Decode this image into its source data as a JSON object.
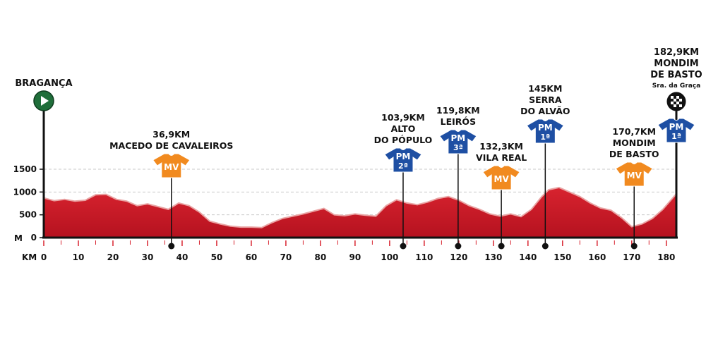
{
  "chart_data": {
    "type": "area",
    "title": "",
    "x_unit_label": "KM",
    "y_unit_label": "M",
    "xlim": [
      0,
      182.9
    ],
    "ylim": [
      0,
      1500
    ],
    "x_ticks": [
      0,
      10,
      20,
      30,
      40,
      50,
      60,
      70,
      80,
      90,
      100,
      110,
      120,
      130,
      140,
      150,
      160,
      170,
      180
    ],
    "y_ticks": [
      0,
      500,
      1000,
      1500
    ],
    "grid": "dashed horizontal",
    "profile": {
      "x": [
        0,
        3,
        6,
        9,
        12,
        15,
        18,
        21,
        24,
        27,
        30,
        33,
        36,
        39,
        42,
        45,
        48,
        51,
        54,
        57,
        60,
        63,
        66,
        69,
        72,
        75,
        78,
        81,
        84,
        87,
        90,
        93,
        96,
        99,
        102,
        105,
        108,
        111,
        114,
        117,
        120,
        123,
        126,
        129,
        132,
        135,
        138,
        141,
        144,
        146,
        149,
        152,
        155,
        158,
        161,
        164,
        167,
        170,
        173,
        176,
        179,
        182.9
      ],
      "y": [
        870,
        810,
        840,
        800,
        820,
        940,
        950,
        840,
        800,
        700,
        740,
        680,
        620,
        760,
        700,
        560,
        360,
        300,
        250,
        230,
        230,
        220,
        330,
        420,
        470,
        520,
        580,
        640,
        500,
        480,
        520,
        490,
        470,
        700,
        830,
        760,
        720,
        780,
        860,
        900,
        820,
        700,
        620,
        520,
        470,
        520,
        460,
        620,
        900,
        1050,
        1100,
        1000,
        900,
        760,
        650,
        600,
        440,
        240,
        300,
        420,
        620,
        960
      ]
    },
    "start": {
      "name": "BRAGANÇA",
      "km": 0
    },
    "finish": {
      "km_label": "182,9KM",
      "name_lines": [
        "MONDIM",
        "DE BASTO"
      ],
      "sub": "Sra. da Graça",
      "km": 182.9
    },
    "climbs": [
      {
        "km": 36.9,
        "km_label": "36,9KM",
        "name_lines": [
          "MACEDO DE CAVALEIROS"
        ],
        "type": "MV",
        "cat": "",
        "color": "#f18a1f"
      },
      {
        "km": 103.9,
        "km_label": "103,9KM",
        "name_lines": [
          "ALTO",
          "DO PÓPULO"
        ],
        "type": "PM",
        "cat": "2ª",
        "color": "#1e4fa3"
      },
      {
        "km": 119.8,
        "km_label": "119,8KM",
        "name_lines": [
          "LEIRÓS"
        ],
        "type": "PM",
        "cat": "3ª",
        "color": "#1e4fa3"
      },
      {
        "km": 132.3,
        "km_label": "132,3KM",
        "name_lines": [
          "VILA REAL"
        ],
        "type": "MV",
        "cat": "",
        "color": "#f18a1f"
      },
      {
        "km": 145,
        "km_label": "145KM",
        "name_lines": [
          "SERRA",
          "DO ALVÃO"
        ],
        "type": "PM",
        "cat": "1ª",
        "color": "#1e4fa3"
      },
      {
        "km": 170.7,
        "km_label": "170,7KM",
        "name_lines": [
          "MONDIM",
          "DE BASTO"
        ],
        "type": "MV",
        "cat": "",
        "color": "#f18a1f"
      },
      {
        "km": 182.9,
        "km_label": "",
        "name_lines": [],
        "type": "PM",
        "cat": "1ª",
        "color": "#1e4fa3"
      }
    ]
  },
  "colors": {
    "profile_fill": "#d8232f",
    "profile_fill_dark": "#b5121f",
    "profile_stroke": "#e9a3a3",
    "axis": "#111111",
    "start_marker": "#1f6e3a",
    "mv_jersey": "#f18a1f",
    "pm_jersey": "#1e4fa3"
  }
}
